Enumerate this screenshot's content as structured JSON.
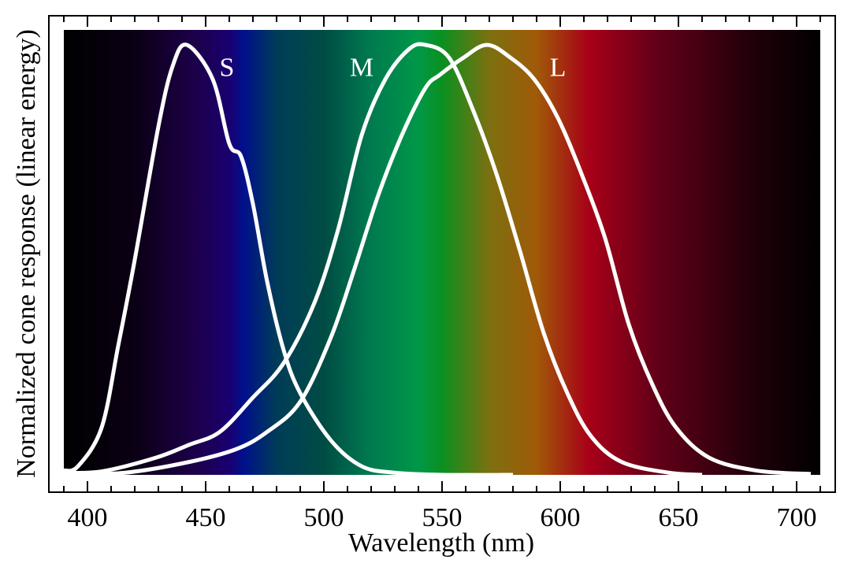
{
  "chart_data": {
    "type": "line",
    "title": "",
    "xlabel": "Wavelength (nm)",
    "ylabel": "Normalized cone response (linear energy)",
    "xlim": [
      390,
      710
    ],
    "ylim": [
      0,
      1
    ],
    "xticks": [
      400,
      450,
      500,
      550,
      600,
      650,
      700
    ],
    "minor_tick_step": 10,
    "grid": false,
    "legend": "none",
    "background": "visible spectrum gradient",
    "line_color": "#ffffff",
    "spectrum_stops": [
      {
        "nm": 390,
        "color": "#000000"
      },
      {
        "nm": 420,
        "color": "#0b0014"
      },
      {
        "nm": 445,
        "color": "#1c0048"
      },
      {
        "nm": 460,
        "color": "#1a0070"
      },
      {
        "nm": 466,
        "color": "#00108c"
      },
      {
        "nm": 480,
        "color": "#003c58"
      },
      {
        "nm": 500,
        "color": "#004c44"
      },
      {
        "nm": 520,
        "color": "#007a50"
      },
      {
        "nm": 540,
        "color": "#009848"
      },
      {
        "nm": 550,
        "color": "#0a9020"
      },
      {
        "nm": 570,
        "color": "#7c7010"
      },
      {
        "nm": 590,
        "color": "#a05a08"
      },
      {
        "nm": 612,
        "color": "#a80018"
      },
      {
        "nm": 640,
        "color": "#640018"
      },
      {
        "nm": 680,
        "color": "#22000a"
      },
      {
        "nm": 710,
        "color": "#000000"
      }
    ],
    "series": [
      {
        "name": "S",
        "x": [
          390,
          396,
          406,
          413,
          420,
          430,
          436,
          442,
          453,
          460,
          465,
          470,
          476,
          483,
          490,
          503,
          516,
          530,
          550,
          580
        ],
        "y": [
          0.01,
          0.02,
          0.11,
          0.3,
          0.5,
          0.81,
          0.95,
          1.0,
          0.92,
          0.77,
          0.74,
          0.63,
          0.45,
          0.29,
          0.19,
          0.08,
          0.02,
          0.005,
          0.0,
          0.0
        ],
        "label_at": [
          459,
          0.95
        ]
      },
      {
        "name": "M",
        "x": [
          390,
          406,
          429,
          443,
          456,
          470,
          483,
          496,
          506,
          516,
          526,
          536,
          543,
          553,
          563,
          573,
          583,
          593,
          603,
          613,
          626,
          646,
          660
        ],
        "y": [
          0.005,
          0.008,
          0.04,
          0.07,
          0.1,
          0.18,
          0.26,
          0.4,
          0.57,
          0.79,
          0.92,
          0.99,
          1.0,
          0.97,
          0.85,
          0.7,
          0.52,
          0.33,
          0.19,
          0.09,
          0.03,
          0.005,
          0.0
        ],
        "label_at": [
          516,
          0.95
        ]
      },
      {
        "name": "L",
        "x": [
          390,
          416,
          443,
          463,
          476,
          490,
          503,
          513,
          523,
          533,
          543,
          549,
          559,
          569,
          579,
          589,
          599,
          609,
          619,
          629,
          639,
          649,
          663,
          683,
          706
        ],
        "y": [
          0.0,
          0.005,
          0.03,
          0.06,
          0.1,
          0.17,
          0.32,
          0.48,
          0.65,
          0.79,
          0.9,
          0.93,
          0.97,
          1.0,
          0.97,
          0.92,
          0.83,
          0.7,
          0.55,
          0.35,
          0.21,
          0.11,
          0.04,
          0.01,
          0.002
        ],
        "label_at": [
          599,
          0.95
        ]
      }
    ]
  }
}
